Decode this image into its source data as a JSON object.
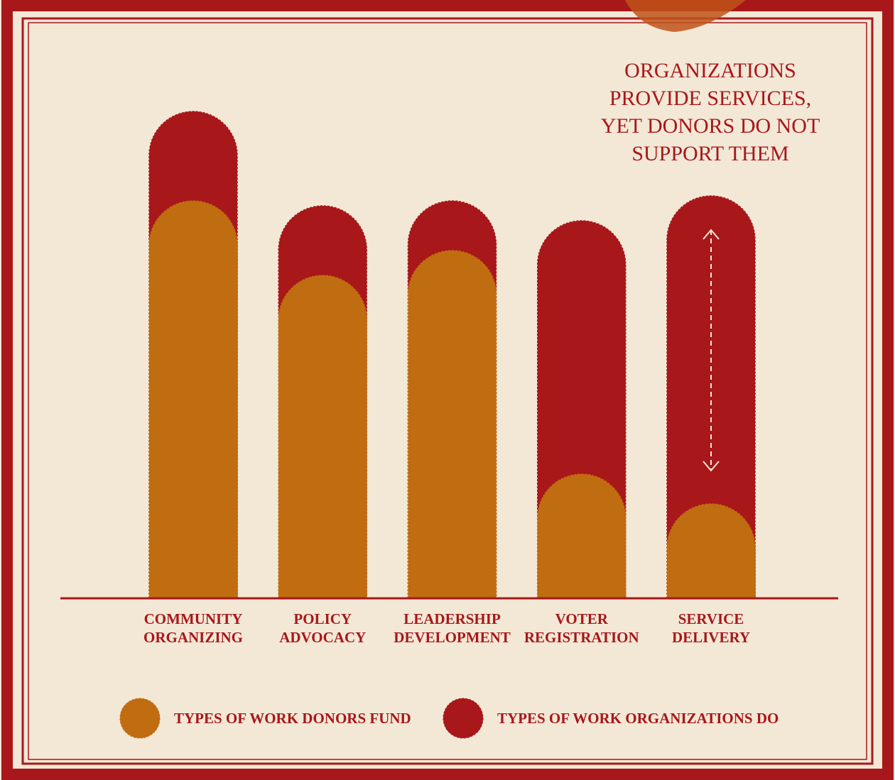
{
  "chart_data": {
    "type": "bar",
    "annotation": [
      "ORGANIZATIONS",
      "PROVIDE SERVICES,",
      "YET DONORS DO NOT",
      "SUPPORT THEM"
    ],
    "categories": [
      "COMMUNITY ORGANIZING",
      "POLICY ADVOCACY",
      "LEADERSHIP DEVELOPMENT",
      "VOTER REGISTRATION",
      "SERVICE DELIVERY"
    ],
    "series": [
      {
        "name": "TYPES OF WORK ORGANIZATIONS DO",
        "color": "#a8171a",
        "values": [
          98,
          79,
          80,
          76,
          81
        ]
      },
      {
        "name": "TYPES OF WORK DONORS FUND",
        "color": "#c06c10",
        "values": [
          80,
          65,
          70,
          25,
          19
        ]
      }
    ],
    "ylim": [
      0,
      100
    ]
  }
}
